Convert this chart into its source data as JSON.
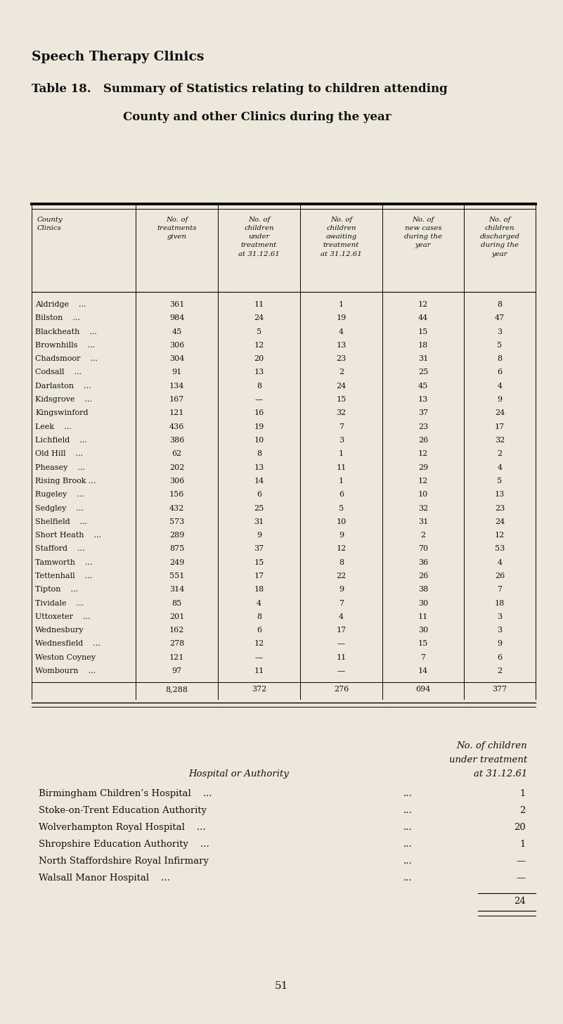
{
  "title1": "Speech Therapy Clinics",
  "title2": "Table 18.   Summary of Statistics relating to children attending",
  "title3": "County and other Clinics during the year",
  "bg_color": "#ede8db",
  "col_headers": [
    "County\nClinics",
    "No. of\ntreatments\ngiven",
    "No. of\nchildren\nunder\ntreatment\nat 31.12.61",
    "No. of\nchildren\nawaiting\ntreatment\nat 31.12.61",
    "No. of\nnew cases\nduring the\nyear",
    "No. of\nchildren\ndischarged\nduring the\nyear"
  ],
  "rows": [
    [
      "Aldridge    ...",
      "361",
      "11",
      "1",
      "12",
      "8"
    ],
    [
      "Bilston    ...",
      "984",
      "24",
      "19",
      "44",
      "47"
    ],
    [
      "Blackheath    ...",
      "45",
      "5",
      "4",
      "15",
      "3"
    ],
    [
      "Brownhills    ...",
      "306",
      "12",
      "13",
      "18",
      "5"
    ],
    [
      "Chadsmoor    ...",
      "304",
      "20",
      "23",
      "31",
      "8"
    ],
    [
      "Codsall    ...",
      "91",
      "13",
      "2",
      "25",
      "6"
    ],
    [
      "Darlaston    ...",
      "134",
      "8",
      "24",
      "45",
      "4"
    ],
    [
      "Kidsgrove    ...",
      "167",
      "—",
      "15",
      "13",
      "9"
    ],
    [
      "Kingswinford",
      "121",
      "16",
      "32",
      "37",
      "24"
    ],
    [
      "Leek    ...",
      "436",
      "19",
      "7",
      "23",
      "17"
    ],
    [
      "Lichfield    ...",
      "386",
      "10",
      "3",
      "26",
      "32"
    ],
    [
      "Old Hill    ...",
      "62",
      "8",
      "1",
      "12",
      "2"
    ],
    [
      "Pheasey    ...",
      "202",
      "13",
      "11",
      "29",
      "4"
    ],
    [
      "Rising Brook ...",
      "306",
      "14",
      "1",
      "12",
      "5"
    ],
    [
      "Rugeley    ...",
      "156",
      "6",
      "6",
      "10",
      "13"
    ],
    [
      "Sedgley    ...",
      "432",
      "25",
      "5",
      "32",
      "23"
    ],
    [
      "Shelfield    ...",
      "573",
      "31",
      "10",
      "31",
      "24"
    ],
    [
      "Short Heath    ...",
      "289",
      "9",
      "9",
      "2",
      "12"
    ],
    [
      "Stafford    ...",
      "875",
      "37",
      "12",
      "70",
      "53"
    ],
    [
      "Tamworth    ...",
      "249",
      "15",
      "8",
      "36",
      "4"
    ],
    [
      "Tettenhall    ...",
      "551",
      "17",
      "22",
      "26",
      "26"
    ],
    [
      "Tipton    ...",
      "314",
      "18",
      "9",
      "38",
      "7"
    ],
    [
      "Tividale    ...",
      "85",
      "4",
      "7",
      "30",
      "18"
    ],
    [
      "Uttoxeter    ...",
      "201",
      "8",
      "4",
      "11",
      "3"
    ],
    [
      "Wednesbury",
      "162",
      "6",
      "17",
      "30",
      "3"
    ],
    [
      "Wednesfield    ...",
      "278",
      "12",
      "—",
      "15",
      "9"
    ],
    [
      "Weston Coyney",
      "121",
      "—",
      "11",
      "7",
      "6"
    ],
    [
      "Wombourn    ...",
      "97",
      "11",
      "—",
      "14",
      "2"
    ]
  ],
  "totals": [
    "",
    "8,288",
    "372",
    "276",
    "694",
    "377"
  ],
  "hosp_header1": "No. of children",
  "hosp_header2": "under treatment",
  "hosp_header3": "at 31.12.61",
  "hosp_col_header": "Hospital or Authority",
  "hospitals": [
    [
      "Birmingham Children’s Hospital    ...",
      "...",
      "1"
    ],
    [
      "Stoke-on-Trent Education Authority",
      "...",
      "2"
    ],
    [
      "Wolverhampton Royal Hospital    ...",
      "...",
      "20"
    ],
    [
      "Shropshire Education Authority    ...",
      "...",
      "1"
    ],
    [
      "North Staffordshire Royal Infirmary",
      "...",
      "—"
    ],
    [
      "Walsall Manor Hospital    ...",
      "...",
      "—"
    ]
  ],
  "hosp_total": "24",
  "page_num": "51"
}
